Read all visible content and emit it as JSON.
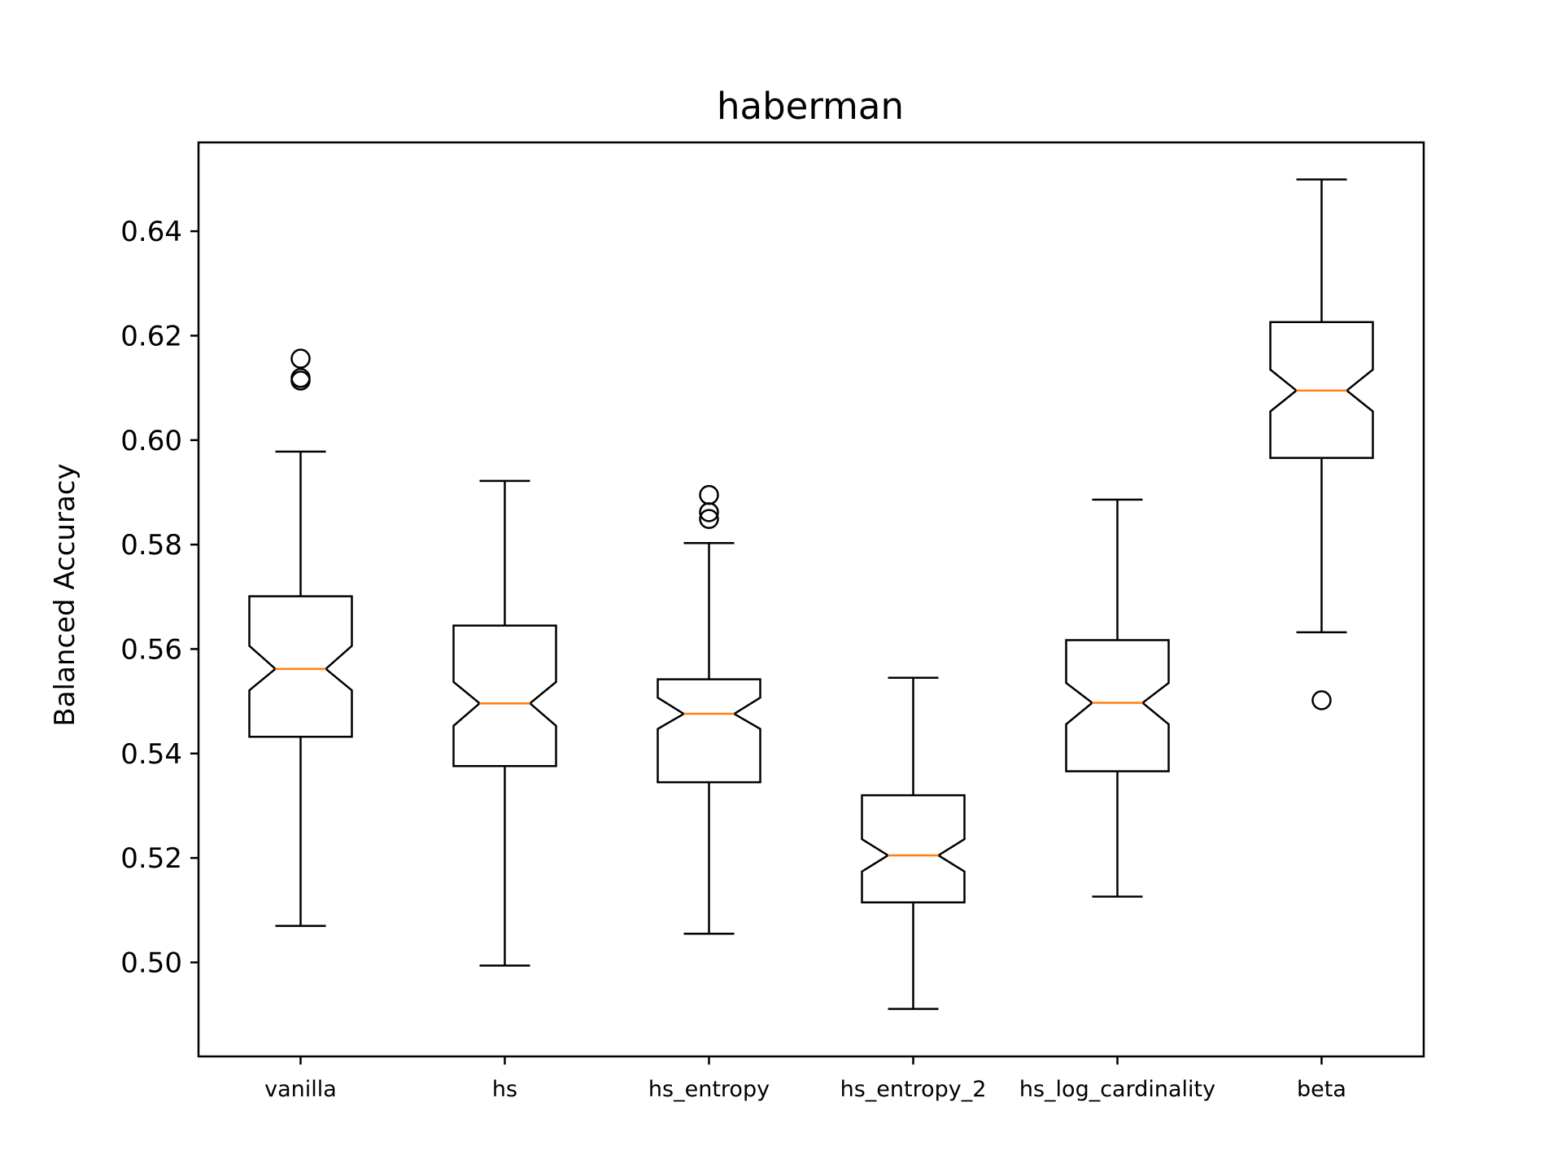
{
  "chart_data": {
    "type": "boxplot",
    "title": "haberman",
    "xlabel": "",
    "ylabel": "Balanced Accuracy",
    "ylim": [
      0.482,
      0.657
    ],
    "yticks": [
      "0.50",
      "0.52",
      "0.54",
      "0.56",
      "0.58",
      "0.60",
      "0.62",
      "0.64"
    ],
    "ytick_values": [
      0.5,
      0.52,
      0.54,
      0.56,
      0.58,
      0.6,
      0.62,
      0.64
    ],
    "notched": true,
    "grid": false,
    "categories": [
      "vanilla",
      "hs",
      "hs_entropy",
      "hs_entropy_2",
      "hs_log_cardinality",
      "beta"
    ],
    "boxes": [
      {
        "category": "vanilla",
        "whisker_low": 0.507,
        "q1": 0.5432,
        "median": 0.5562,
        "q3": 0.5701,
        "whisker_high": 0.5978,
        "notch_low": 0.5521,
        "notch_high": 0.5606,
        "outliers": [
          0.6156,
          0.6114,
          0.6119
        ]
      },
      {
        "category": "hs",
        "whisker_low": 0.4994,
        "q1": 0.5376,
        "median": 0.5496,
        "q3": 0.5645,
        "whisker_high": 0.5922,
        "notch_low": 0.5453,
        "notch_high": 0.5537,
        "outliers": []
      },
      {
        "category": "hs_entropy",
        "whisker_low": 0.5055,
        "q1": 0.5345,
        "median": 0.5476,
        "q3": 0.5542,
        "whisker_high": 0.5803,
        "notch_low": 0.5447,
        "notch_high": 0.5507,
        "outliers": [
          0.5895,
          0.5862,
          0.5849
        ]
      },
      {
        "category": "hs_entropy_2",
        "whisker_low": 0.4911,
        "q1": 0.5115,
        "median": 0.5205,
        "q3": 0.532,
        "whisker_high": 0.5545,
        "notch_low": 0.5174,
        "notch_high": 0.5236,
        "outliers": []
      },
      {
        "category": "hs_log_cardinality",
        "whisker_low": 0.5126,
        "q1": 0.5366,
        "median": 0.5497,
        "q3": 0.5617,
        "whisker_high": 0.5886,
        "notch_low": 0.5456,
        "notch_high": 0.5535,
        "outliers": []
      },
      {
        "category": "beta",
        "whisker_low": 0.5632,
        "q1": 0.5966,
        "median": 0.6095,
        "q3": 0.6226,
        "whisker_high": 0.6499,
        "notch_low": 0.6055,
        "notch_high": 0.6135,
        "outliers": [
          0.5502
        ]
      }
    ],
    "colors": {
      "box": "#000000",
      "median": "#ff7f0e",
      "axes": "#000000"
    }
  }
}
